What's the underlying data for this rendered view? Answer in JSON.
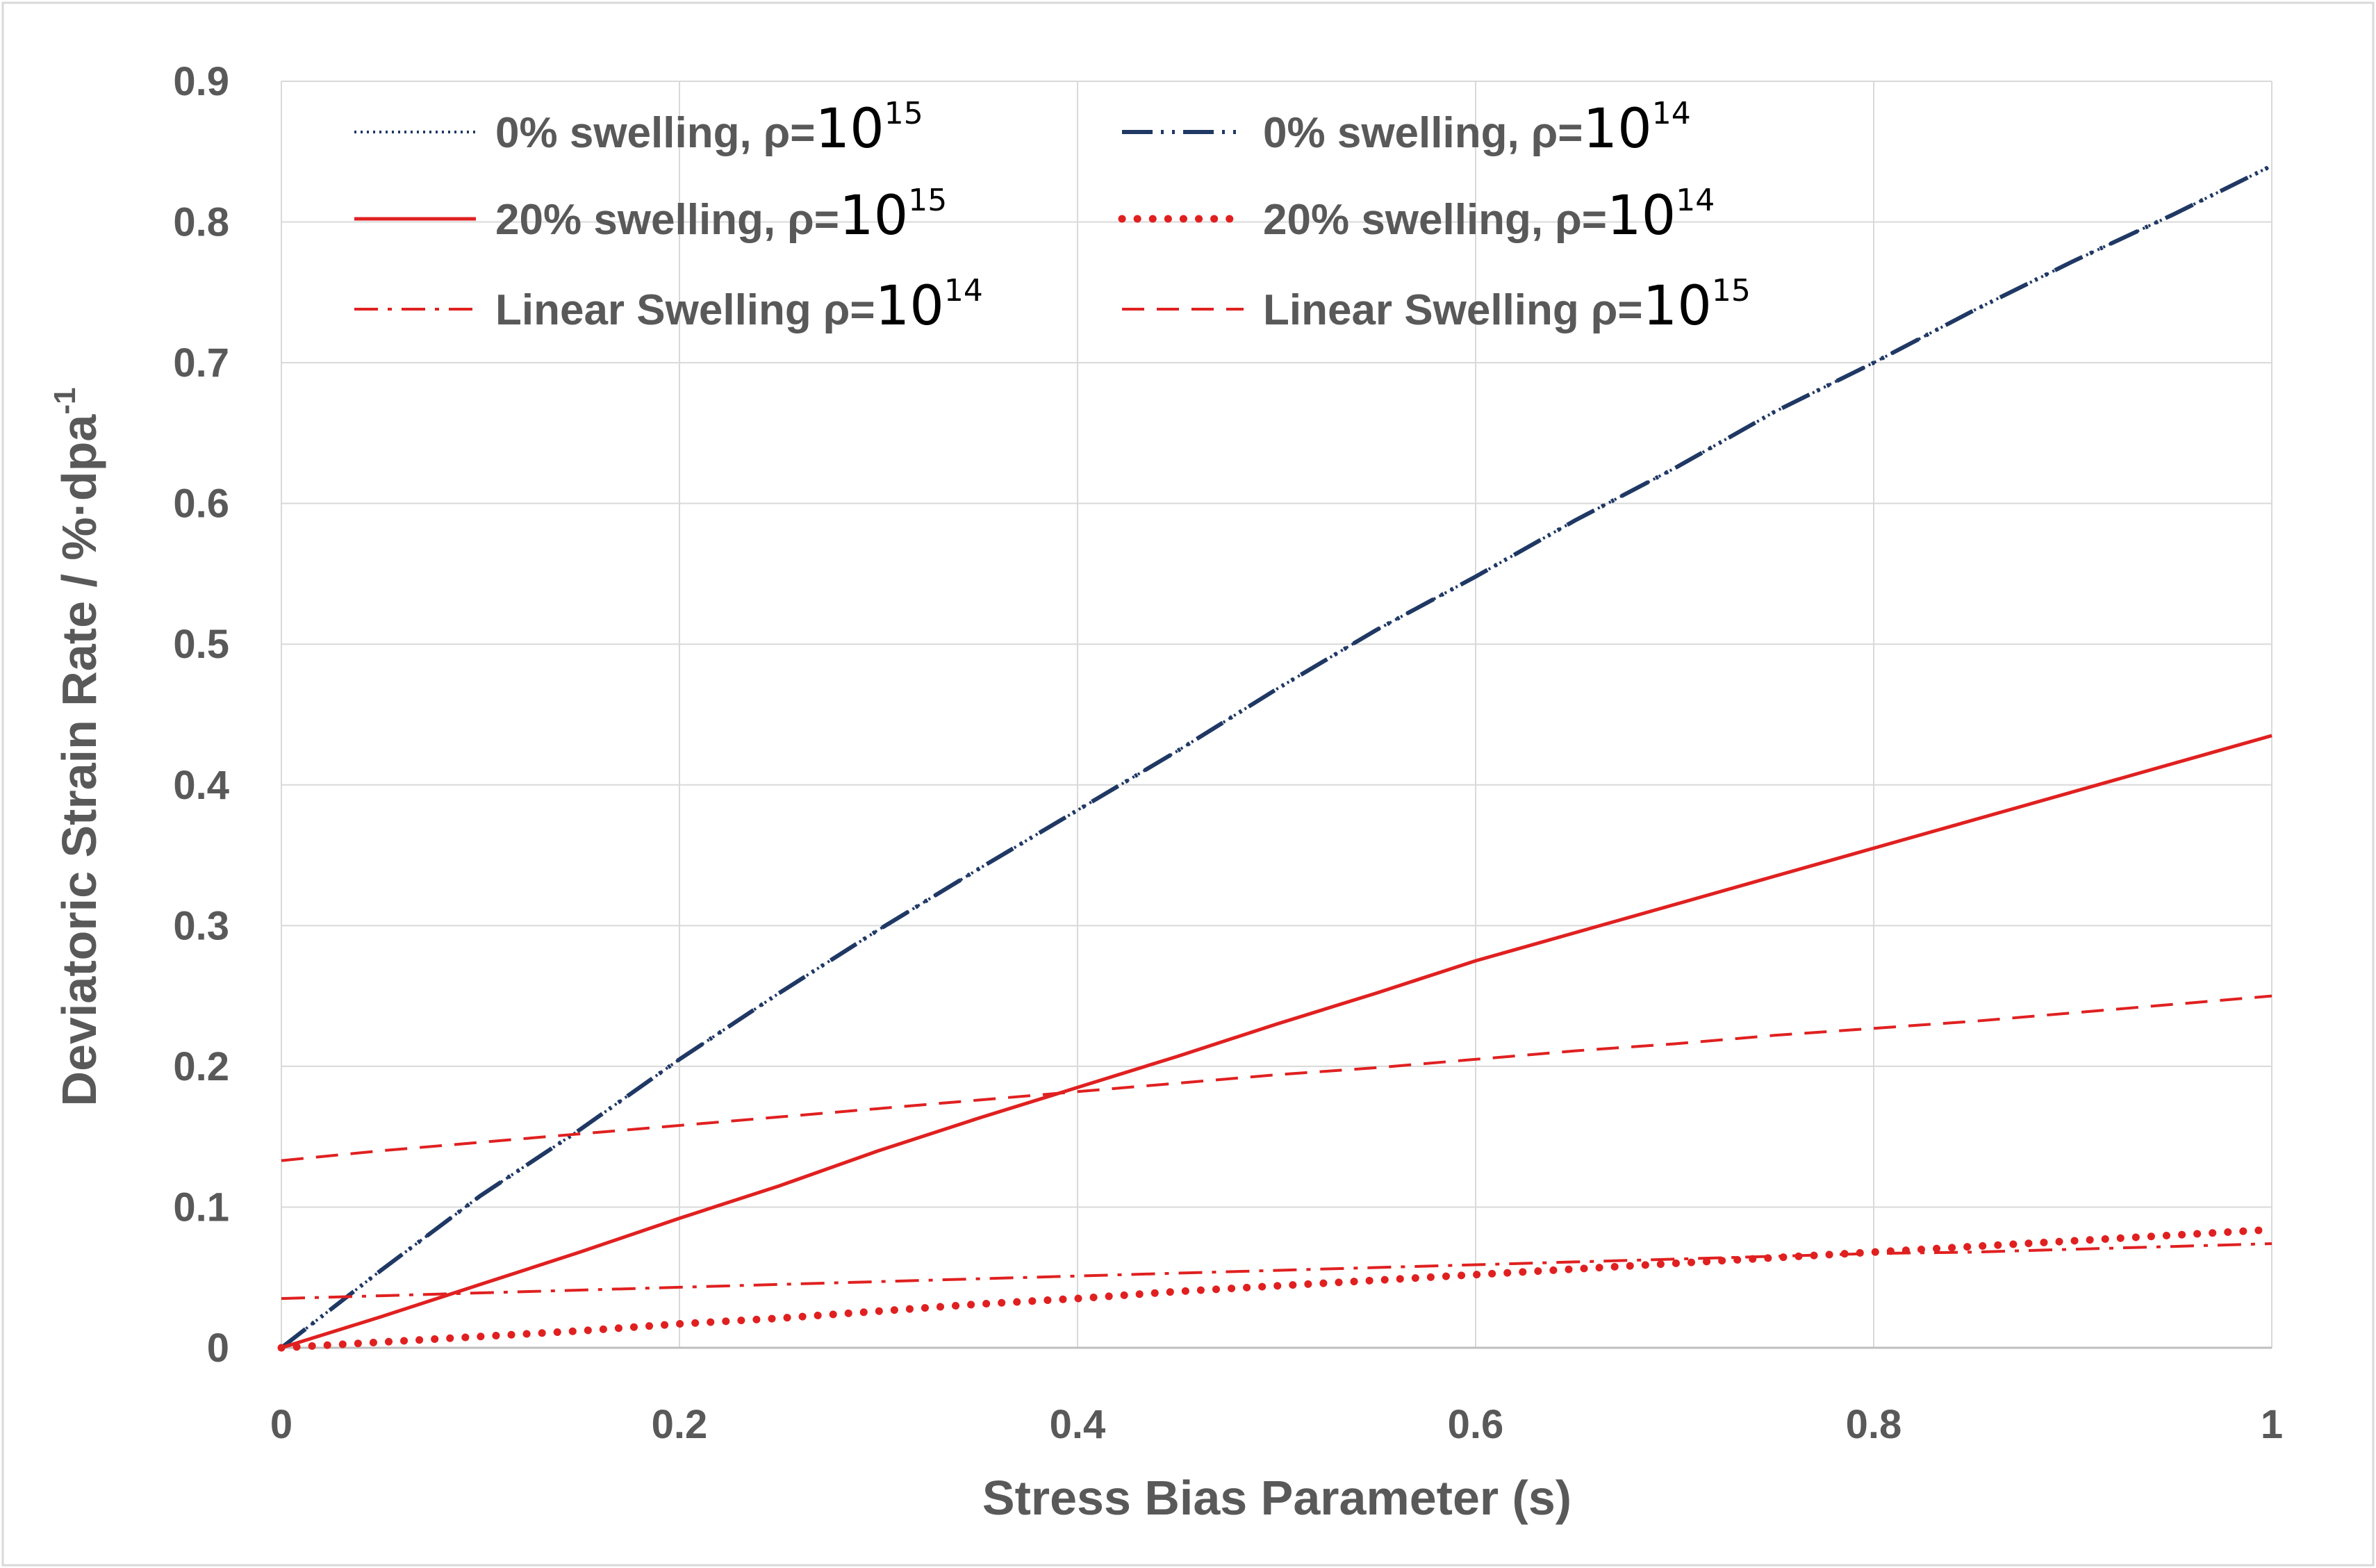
{
  "chart_data": {
    "type": "line",
    "title": "",
    "xlabel": "Stress Bias Parameter (s)",
    "ylabel": "Deviatoric Strain Rate / %·dpa",
    "ylabel_sup": "-1",
    "xlim": [
      0,
      1
    ],
    "ylim": [
      0,
      0.9
    ],
    "xticks": [
      0,
      0.2,
      0.4,
      0.6,
      0.8,
      1
    ],
    "xtick_labels": [
      "0",
      "0.2",
      "0.4",
      "0.6",
      "0.8",
      "1"
    ],
    "yticks": [
      0,
      0.1,
      0.2,
      0.3,
      0.4,
      0.5,
      0.6,
      0.7,
      0.8,
      0.9
    ],
    "ytick_labels": [
      "0",
      "0.1",
      "0.2",
      "0.3",
      "0.4",
      "0.5",
      "0.6",
      "0.7",
      "0.8",
      "0.9"
    ],
    "grid": true,
    "legend_position": "top-left",
    "x": [
      0,
      0.05,
      0.1,
      0.15,
      0.2,
      0.25,
      0.3,
      0.35,
      0.4,
      0.45,
      0.5,
      0.55,
      0.6,
      0.65,
      0.7,
      0.75,
      0.8,
      0.85,
      0.9,
      0.95,
      1
    ],
    "series": [
      {
        "name": "0% swelling, ρ=10^15",
        "label": "0%  swelling,  ρ=",
        "exponent_base": "10",
        "exponent": "15",
        "color": "#1f3864",
        "dash": "dotted",
        "values": [
          0,
          0.055,
          0.108,
          0.155,
          0.205,
          0.252,
          0.297,
          0.34,
          0.382,
          0.424,
          0.468,
          0.51,
          0.548,
          0.588,
          0.625,
          0.665,
          0.7,
          0.737,
          0.772,
          0.805,
          0.84
        ]
      },
      {
        "name": "0% swelling, ρ=10^14",
        "label": "0%  swelling,  ρ=",
        "exponent_base": "10",
        "exponent": "14",
        "color": "#1f3864",
        "dash": "long-dash-dot-dot",
        "values": [
          0,
          0.055,
          0.108,
          0.155,
          0.205,
          0.252,
          0.297,
          0.34,
          0.382,
          0.424,
          0.468,
          0.51,
          0.548,
          0.588,
          0.625,
          0.665,
          0.7,
          0.737,
          0.772,
          0.805,
          0.84
        ]
      },
      {
        "name": "20% swelling, ρ=10^15",
        "label": "20%  swelling,  ρ=",
        "exponent_base": "10",
        "exponent": "15",
        "color": "#e02020",
        "dash": "solid",
        "values": [
          0,
          0.022,
          0.045,
          0.068,
          0.092,
          0.115,
          0.14,
          0.163,
          0.185,
          0.207,
          0.23,
          0.252,
          0.275,
          0.295,
          0.315,
          0.335,
          0.355,
          0.375,
          0.395,
          0.415,
          0.435
        ]
      },
      {
        "name": "20% swelling, ρ=10^14",
        "label": "20%  swelling,  ρ=",
        "exponent_base": "10",
        "exponent": "14",
        "color": "#e02020",
        "dash": "heavy-dots",
        "values": [
          0,
          0.004,
          0.008,
          0.012,
          0.017,
          0.021,
          0.026,
          0.031,
          0.035,
          0.04,
          0.044,
          0.048,
          0.052,
          0.056,
          0.06,
          0.064,
          0.068,
          0.072,
          0.076,
          0.08,
          0.084
        ]
      },
      {
        "name": "Linear Swelling ρ=10^14",
        "label": "Linear Swelling ρ=",
        "exponent_base": "10",
        "exponent": "14",
        "color": "#e02020",
        "dash": "dash-dot",
        "values": [
          0.035,
          0.037,
          0.039,
          0.041,
          0.043,
          0.045,
          0.047,
          0.049,
          0.051,
          0.053,
          0.055,
          0.057,
          0.059,
          0.061,
          0.063,
          0.065,
          0.067,
          0.068,
          0.07,
          0.072,
          0.074
        ]
      },
      {
        "name": "Linear Swelling ρ=10^15",
        "label": "Linear Swelling ρ=",
        "exponent_base": "10",
        "exponent": "15",
        "color": "#e02020",
        "dash": "dashed",
        "values": [
          0.133,
          0.14,
          0.146,
          0.152,
          0.158,
          0.164,
          0.17,
          0.176,
          0.182,
          0.188,
          0.194,
          0.199,
          0.205,
          0.211,
          0.216,
          0.222,
          0.227,
          0.232,
          0.238,
          0.244,
          0.25
        ]
      }
    ]
  }
}
